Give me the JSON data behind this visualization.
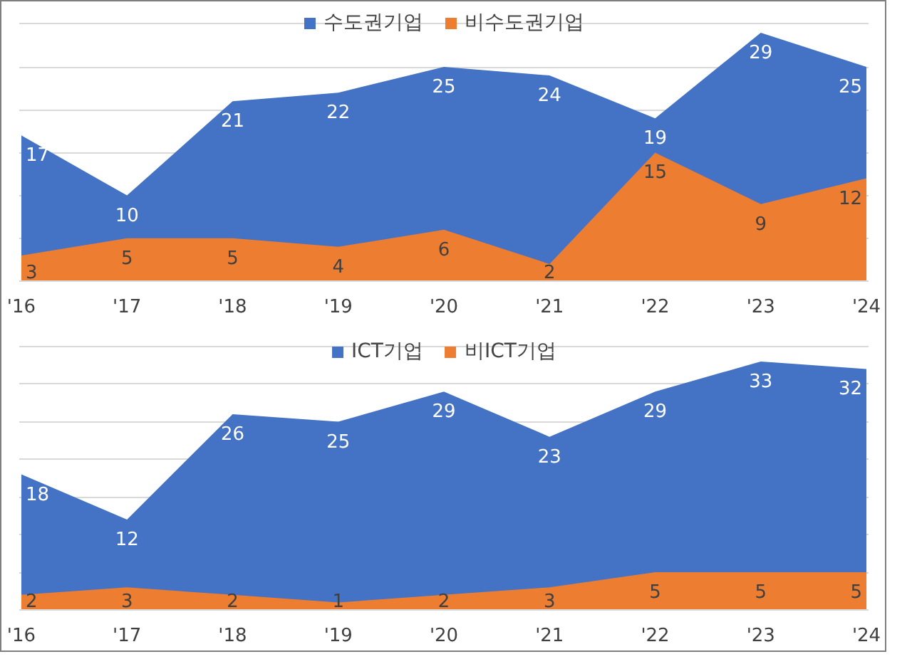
{
  "chart_data": [
    {
      "type": "area",
      "categories": [
        "'16",
        "'17",
        "'18",
        "'19",
        "'20",
        "'21",
        "'22",
        "'23",
        "'24"
      ],
      "grid": "y",
      "legend": "top",
      "data_labels": true,
      "series": [
        {
          "name": "수도권기업",
          "color": "#4472c4",
          "values": [
            17,
            10,
            21,
            22,
            25,
            24,
            19,
            29,
            25
          ]
        },
        {
          "name": "비수도권기업",
          "color": "#ed7d31",
          "values": [
            3,
            5,
            5,
            4,
            6,
            2,
            15,
            9,
            12
          ]
        }
      ]
    },
    {
      "type": "area",
      "categories": [
        "'16",
        "'17",
        "'18",
        "'19",
        "'20",
        "'21",
        "'22",
        "'23",
        "'24"
      ],
      "grid": "y",
      "legend": "top",
      "data_labels": true,
      "series": [
        {
          "name": "ICT기업",
          "color": "#4472c4",
          "values": [
            18,
            12,
            26,
            25,
            29,
            23,
            29,
            33,
            32
          ]
        },
        {
          "name": "비ICT기업",
          "color": "#ed7d31",
          "values": [
            2,
            3,
            2,
            1,
            2,
            3,
            5,
            5,
            5
          ]
        }
      ]
    }
  ]
}
